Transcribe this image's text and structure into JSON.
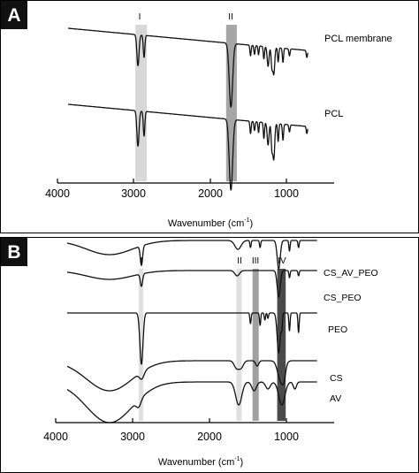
{
  "panels": [
    {
      "letter": "A",
      "xlabel_main": "Wavenumber (cm",
      "xlabel_sup": "-1",
      "xlabel_close": ")",
      "band_labels": [
        "I",
        "II"
      ],
      "tick_labels": [
        "4000",
        "3000",
        "2000",
        "1000"
      ],
      "trace_labels": [
        "PCL membrane",
        "PCL"
      ]
    },
    {
      "letter": "B",
      "xlabel_main": "Wavenumber (cm",
      "xlabel_sup": "-1",
      "xlabel_close": ")",
      "band_labels": [
        "I",
        "II",
        "III",
        "IV"
      ],
      "tick_labels": [
        "4000",
        "3000",
        "2000",
        "1000"
      ],
      "trace_labels": [
        "CS_AV_PEO",
        "CS_PEO",
        "PEO",
        "CS",
        "AV"
      ]
    }
  ],
  "chart_data": [
    {
      "type": "line",
      "xlabel": "Wavenumber (cm-1)",
      "xlim": [
        4000,
        400
      ],
      "x_ticks": [
        4000,
        3000,
        2000,
        1000
      ],
      "grid": false,
      "highlight_bands": [
        {
          "label": "I",
          "from": 2980,
          "to": 2830,
          "color": "#d8d8d8"
        },
        {
          "label": "II",
          "from": 1790,
          "to": 1650,
          "color": "#a6a6a6"
        }
      ],
      "series": [
        {
          "name": "PCL membrane",
          "offset": 32,
          "dips": [
            [
              2945,
              14,
              35
            ],
            [
              2865,
              10,
              25
            ],
            [
              1727,
              22,
              72
            ],
            [
              1470,
              8,
              12
            ],
            [
              1418,
              8,
              10
            ],
            [
              1365,
              7,
              10
            ],
            [
              1295,
              8,
              14
            ],
            [
              1240,
              12,
              22
            ],
            [
              1190,
              10,
              22
            ],
            [
              1165,
              12,
              30
            ],
            [
              1108,
              8,
              16
            ],
            [
              1045,
              8,
              16
            ],
            [
              960,
              8,
              8
            ],
            [
              732,
              8,
              8
            ]
          ]
        },
        {
          "name": "PCL",
          "offset": 118,
          "dips": [
            [
              2945,
              14,
              40
            ],
            [
              2865,
              10,
              28
            ],
            [
              1727,
              22,
              80
            ],
            [
              1470,
              8,
              14
            ],
            [
              1418,
              8,
              10
            ],
            [
              1365,
              7,
              12
            ],
            [
              1295,
              8,
              18
            ],
            [
              1240,
              12,
              25
            ],
            [
              1190,
              10,
              28
            ],
            [
              1165,
              12,
              40
            ],
            [
              1108,
              8,
              20
            ],
            [
              1045,
              8,
              18
            ],
            [
              960,
              8,
              8
            ],
            [
              732,
              8,
              8
            ]
          ]
        }
      ]
    },
    {
      "type": "line",
      "xlabel": "Wavenumber (cm-1)",
      "xlim": [
        4000,
        400
      ],
      "x_ticks": [
        4000,
        3000,
        2000,
        1000
      ],
      "grid": false,
      "highlight_bands": [
        {
          "label": "I",
          "from": 2920,
          "to": 2860,
          "color": "#e0e0e0"
        },
        {
          "label": "II",
          "from": 1650,
          "to": 1580,
          "color": "#e0e0e0"
        },
        {
          "label": "III",
          "from": 1440,
          "to": 1360,
          "color": "#a0a0a0"
        },
        {
          "label": "IV",
          "from": 1120,
          "to": 1010,
          "color": "#4a4a4a"
        }
      ],
      "series": [
        {
          "name": "CS_AV_PEO",
          "offset": 272,
          "broad": [
            [
              3300,
              300,
              16
            ]
          ],
          "dips": [
            [
              2885,
              15,
              22
            ],
            [
              1630,
              40,
              10
            ],
            [
              1467,
              8,
              8
            ],
            [
              1342,
              8,
              8
            ],
            [
              1100,
              20,
              32
            ],
            [
              960,
              8,
              12
            ],
            [
              842,
              8,
              8
            ]
          ]
        },
        {
          "name": "CS_PEO",
          "offset": 306,
          "broad": [
            [
              3300,
              300,
              10
            ]
          ],
          "dips": [
            [
              2885,
              15,
              14
            ],
            [
              1640,
              30,
              6
            ],
            [
              1100,
              20,
              30
            ],
            [
              960,
              8,
              8
            ],
            [
              842,
              8,
              6
            ]
          ]
        },
        {
          "name": "PEO",
          "offset": 354,
          "dips": [
            [
              2885,
              20,
              58
            ],
            [
              1467,
              8,
              12
            ],
            [
              1342,
              8,
              14
            ],
            [
              1280,
              8,
              8
            ],
            [
              1240,
              8,
              6
            ],
            [
              1100,
              20,
              45
            ],
            [
              1060,
              8,
              15
            ],
            [
              960,
              8,
              20
            ],
            [
              842,
              8,
              22
            ]
          ]
        },
        {
          "name": "CS",
          "offset": 408,
          "broad": [
            [
              3300,
              300,
              34
            ]
          ],
          "dips": [
            [
              2880,
              30,
              8
            ],
            [
              1650,
              30,
              8
            ],
            [
              1590,
              30,
              8
            ],
            [
              1380,
              20,
              6
            ],
            [
              1070,
              40,
              24
            ],
            [
              1030,
              20,
              10
            ]
          ]
        },
        {
          "name": "AV",
          "offset": 432,
          "broad": [
            [
              3300,
              300,
              46
            ]
          ],
          "dips": [
            [
              2920,
              30,
              8
            ],
            [
              1620,
              40,
              26
            ],
            [
              1420,
              30,
              10
            ],
            [
              1240,
              30,
              8
            ],
            [
              1060,
              40,
              26
            ],
            [
              890,
              20,
              8
            ]
          ]
        }
      ]
    }
  ]
}
